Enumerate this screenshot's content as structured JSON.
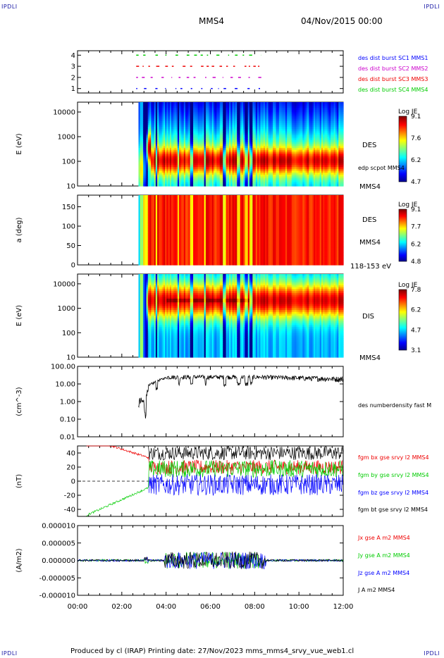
{
  "corners": {
    "tl": "IPDLI",
    "tr": "IPDLI",
    "bl": "IPDLI",
    "br": "IPDLI"
  },
  "header": {
    "spacecraft": "MMS4",
    "date": "04/Nov/2015 00:00"
  },
  "footer": {
    "text": "Produced by cl (IRAP)   Printing date: 27/Nov/2023   mms_mms4_srvy_vue_web1.cl"
  },
  "colors": {
    "blue": "#0000ff",
    "magenta": "#cc00cc",
    "red": "#ee0000",
    "green": "#00cc00",
    "black": "#000000"
  },
  "chart_data": [
    {
      "type": "scatter",
      "panel": "burst",
      "yticks": [
        "1",
        "2",
        "3",
        "4"
      ],
      "ylim": [
        0.6,
        4.4
      ],
      "series": [
        {
          "name": "des dist burst SC1 MMS1",
          "y": 4
        },
        {
          "name": "des dist burst SC2 MMS2",
          "y": 3
        },
        {
          "name": "des dist burst SC3 MMS3",
          "y": 2
        },
        {
          "name": "des dist burst SC4 MMS4",
          "y": 1
        }
      ],
      "x": [
        "02:40",
        "08:20"
      ]
    },
    {
      "type": "heatmap",
      "panel": "des-energy",
      "ylabel": "E (eV)",
      "yticks": [
        "10",
        "100",
        "1000",
        "10000"
      ],
      "label": "DES",
      "sublabel": "MMS4",
      "overlay": "edp scpot MMS4",
      "colorbar": {
        "title": "Log JE",
        "ticks": [
          "9.1",
          "7.6",
          "6.2",
          "4.7"
        ]
      }
    },
    {
      "type": "heatmap",
      "panel": "des-pitch",
      "ylabel": "a (deg)",
      "yticks": [
        "0",
        "50",
        "100",
        "150"
      ],
      "label": "DES",
      "sublabel": "MMS4",
      "range_label": "118-153 eV",
      "colorbar": {
        "title": "Log JE",
        "ticks": [
          "9.1",
          "7.7",
          "6.2",
          "4.8"
        ]
      }
    },
    {
      "type": "heatmap",
      "panel": "dis-energy",
      "ylabel": "E (eV)",
      "yticks": [
        "10",
        "100",
        "1000",
        "10000"
      ],
      "label": "DIS",
      "sublabel": "MMS4",
      "colorbar": {
        "title": "Log JE",
        "ticks": [
          "7.8",
          "6.2",
          "4.7",
          "3.1"
        ]
      }
    },
    {
      "type": "line",
      "panel": "density",
      "ylabel": "(cm^-3)",
      "yticks": [
        "0.01",
        "0.10",
        "1.00",
        "10.00",
        "100.00"
      ],
      "series": [
        {
          "name": "des numberdensity fast M"
        }
      ]
    },
    {
      "type": "line",
      "panel": "bfield",
      "ylabel": "(nT)",
      "yticks": [
        "-40",
        "-20",
        "0",
        "20",
        "40"
      ],
      "series": [
        {
          "name": "fgm bx gse srvy l2 MMS4"
        },
        {
          "name": "fgm by gse srvy l2 MMS4"
        },
        {
          "name": "fgm bz gse srvy l2 MMS4"
        },
        {
          "name": "fgm bt gse srvy l2 MMS4"
        }
      ]
    },
    {
      "type": "line",
      "panel": "current",
      "ylabel": "(A/m2)",
      "yticks": [
        "-0.000010",
        "-0.000005",
        "0.000000",
        "0.000005",
        "0.000010"
      ],
      "series": [
        {
          "name": "Jx gse A m2 MMS4"
        },
        {
          "name": "Jy gse A m2 MMS4"
        },
        {
          "name": "Jz gse A m2 MMS4"
        },
        {
          "name": "J A m2 MMS4"
        }
      ]
    }
  ],
  "xaxis": {
    "ticks": [
      "00:00",
      "02:00",
      "04:00",
      "06:00",
      "08:00",
      "10:00",
      "12:00"
    ]
  }
}
